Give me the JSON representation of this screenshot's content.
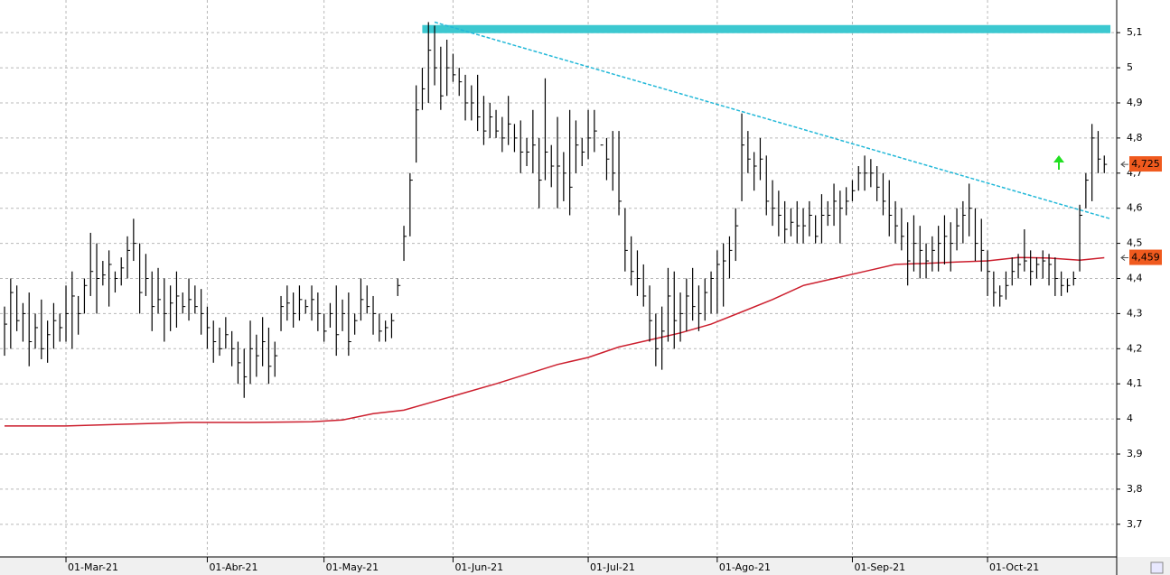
{
  "chart_data": {
    "type": "ohlc",
    "xlim": [
      -0.74,
      181.02
    ],
    "ylim": [
      3.607,
      5.193
    ],
    "grid": true,
    "xticks": [
      {
        "value": 10,
        "label": "01-Mar-21"
      },
      {
        "value": 33,
        "label": "01-Abr-21"
      },
      {
        "value": 52,
        "label": "01-May-21"
      },
      {
        "value": 73,
        "label": "01-Jun-21"
      },
      {
        "value": 95,
        "label": "01-Jul-21"
      },
      {
        "value": 116,
        "label": "01-Ago-21"
      },
      {
        "value": 138,
        "label": "01-Sep-21"
      },
      {
        "value": 160,
        "label": "01-Oct-21"
      }
    ],
    "yticks": [
      {
        "value": 3.7,
        "label": "3,7"
      },
      {
        "value": 3.8,
        "label": "3,8"
      },
      {
        "value": 3.9,
        "label": "3,9"
      },
      4,
      {
        "value": 4.1,
        "label": "4,1"
      },
      {
        "value": 4.2,
        "label": "4,2"
      },
      {
        "value": 4.3,
        "label": "4,3"
      },
      {
        "value": 4.4,
        "label": "4,4"
      },
      {
        "value": 4.5,
        "label": "4,5"
      },
      {
        "value": 4.6,
        "label": "4,6"
      },
      {
        "value": 4.7,
        "label": "4,7"
      },
      {
        "value": 4.8,
        "label": "4,8"
      },
      {
        "value": 4.9,
        "label": "4,9"
      },
      5,
      {
        "value": 5.1,
        "label": "5,1"
      }
    ],
    "bar_color": "#000000",
    "high": [
      4.32,
      4.4,
      4.38,
      4.33,
      4.36,
      4.3,
      4.34,
      4.28,
      4.33,
      4.3,
      4.38,
      4.42,
      4.35,
      4.4,
      4.53,
      4.5,
      4.45,
      4.48,
      4.42,
      4.46,
      4.52,
      4.57,
      4.5,
      4.47,
      4.42,
      4.43,
      4.4,
      4.38,
      4.42,
      4.36,
      4.4,
      4.38,
      4.37,
      4.32,
      4.28,
      4.26,
      4.29,
      4.25,
      4.22,
      4.2,
      4.28,
      4.24,
      4.29,
      4.26,
      4.22,
      4.35,
      4.38,
      4.36,
      4.38,
      4.34,
      4.38,
      4.36,
      4.3,
      4.33,
      4.38,
      4.34,
      4.36,
      4.3,
      4.4,
      4.38,
      4.35,
      4.3,
      4.28,
      4.3,
      4.4,
      4.55,
      4.7,
      4.95,
      5.0,
      5.13,
      5.12,
      5.06,
      5.08,
      5.04,
      5.0,
      4.98,
      4.95,
      4.98,
      4.92,
      4.9,
      4.88,
      4.86,
      4.92,
      4.84,
      4.85,
      4.8,
      4.88,
      4.8,
      4.97,
      4.78,
      4.86,
      4.76,
      4.88,
      4.85,
      4.8,
      4.88,
      4.88,
      4.8,
      4.8,
      4.82,
      4.82,
      4.6,
      4.52,
      4.48,
      4.44,
      4.38,
      4.3,
      4.32,
      4.43,
      4.42,
      4.36,
      4.4,
      4.43,
      4.38,
      4.4,
      4.42,
      4.48,
      4.5,
      4.52,
      4.6,
      4.87,
      4.82,
      4.76,
      4.8,
      4.75,
      4.68,
      4.65,
      4.62,
      4.6,
      4.62,
      4.6,
      4.62,
      4.58,
      4.64,
      4.62,
      4.67,
      4.65,
      4.66,
      4.68,
      4.72,
      4.75,
      4.74,
      4.72,
      4.7,
      4.68,
      4.62,
      4.6,
      4.56,
      4.58,
      4.55,
      4.5,
      4.52,
      4.55,
      4.58,
      4.56,
      4.6,
      4.62,
      4.67,
      4.6,
      4.57,
      4.48,
      4.42,
      4.38,
      4.42,
      4.46,
      4.47,
      4.54,
      4.48,
      4.46,
      4.48,
      4.47,
      4.46,
      4.42,
      4.4,
      4.42,
      4.61,
      4.7,
      4.84,
      4.82,
      4.75
    ],
    "low": [
      4.18,
      4.2,
      4.25,
      4.22,
      4.15,
      4.2,
      4.17,
      4.16,
      4.2,
      4.22,
      4.22,
      4.2,
      4.24,
      4.3,
      4.35,
      4.3,
      4.38,
      4.32,
      4.36,
      4.38,
      4.4,
      4.45,
      4.3,
      4.35,
      4.25,
      4.3,
      4.22,
      4.25,
      4.26,
      4.3,
      4.28,
      4.3,
      4.24,
      4.2,
      4.16,
      4.18,
      4.2,
      4.15,
      4.1,
      4.06,
      4.1,
      4.12,
      4.15,
      4.1,
      4.12,
      4.25,
      4.28,
      4.26,
      4.28,
      4.3,
      4.28,
      4.25,
      4.22,
      4.26,
      4.18,
      4.25,
      4.18,
      4.24,
      4.28,
      4.3,
      4.24,
      4.22,
      4.22,
      4.23,
      4.35,
      4.45,
      4.52,
      4.73,
      4.88,
      4.9,
      4.95,
      4.88,
      4.92,
      4.96,
      4.92,
      4.85,
      4.85,
      4.82,
      4.78,
      4.8,
      4.8,
      4.76,
      4.78,
      4.76,
      4.7,
      4.72,
      4.7,
      4.6,
      4.68,
      4.66,
      4.6,
      4.62,
      4.58,
      4.7,
      4.72,
      4.74,
      4.76,
      4.8,
      4.68,
      4.65,
      4.58,
      4.42,
      4.38,
      4.35,
      4.32,
      4.22,
      4.15,
      4.14,
      4.22,
      4.2,
      4.22,
      4.25,
      4.28,
      4.25,
      4.28,
      4.3,
      4.3,
      4.32,
      4.4,
      4.45,
      4.62,
      4.7,
      4.65,
      4.68,
      4.58,
      4.55,
      4.52,
      4.5,
      4.52,
      4.5,
      4.5,
      4.52,
      4.5,
      4.5,
      4.55,
      4.55,
      4.5,
      4.58,
      4.62,
      4.65,
      4.65,
      4.66,
      4.62,
      4.58,
      4.52,
      4.5,
      4.48,
      4.38,
      4.42,
      4.4,
      4.4,
      4.42,
      4.42,
      4.44,
      4.42,
      4.48,
      4.5,
      4.52,
      4.45,
      4.42,
      4.35,
      4.32,
      4.32,
      4.34,
      4.38,
      4.4,
      4.42,
      4.38,
      4.4,
      4.4,
      4.38,
      4.35,
      4.35,
      4.36,
      4.38,
      4.42,
      4.6,
      4.62,
      4.7,
      4.7
    ],
    "close": [
      4.27,
      4.36,
      4.28,
      4.3,
      4.22,
      4.26,
      4.2,
      4.24,
      4.28,
      4.26,
      4.3,
      4.35,
      4.3,
      4.38,
      4.42,
      4.4,
      4.41,
      4.44,
      4.4,
      4.43,
      4.48,
      4.5,
      4.36,
      4.4,
      4.32,
      4.34,
      4.3,
      4.33,
      4.35,
      4.32,
      4.34,
      4.32,
      4.3,
      4.26,
      4.22,
      4.2,
      4.24,
      4.2,
      4.16,
      4.12,
      4.2,
      4.18,
      4.22,
      4.15,
      4.18,
      4.32,
      4.33,
      4.3,
      4.34,
      4.32,
      4.34,
      4.3,
      4.25,
      4.3,
      4.24,
      4.3,
      4.22,
      4.28,
      4.34,
      4.32,
      4.3,
      4.25,
      4.26,
      4.28,
      4.38,
      4.52,
      4.68,
      4.88,
      4.94,
      5.05,
      5.0,
      4.92,
      5.0,
      4.98,
      4.96,
      4.9,
      4.9,
      4.86,
      4.82,
      4.86,
      4.82,
      4.8,
      4.84,
      4.8,
      4.76,
      4.76,
      4.78,
      4.68,
      4.76,
      4.72,
      4.72,
      4.7,
      4.66,
      4.78,
      4.76,
      4.8,
      4.82,
      4.78,
      4.74,
      4.7,
      4.62,
      4.48,
      4.42,
      4.4,
      4.35,
      4.28,
      4.2,
      4.25,
      4.35,
      4.28,
      4.3,
      4.35,
      4.32,
      4.3,
      4.36,
      4.4,
      4.44,
      4.45,
      4.48,
      4.55,
      4.78,
      4.74,
      4.72,
      4.74,
      4.62,
      4.6,
      4.58,
      4.54,
      4.56,
      4.55,
      4.55,
      4.58,
      4.52,
      4.58,
      4.58,
      4.62,
      4.6,
      4.62,
      4.65,
      4.7,
      4.7,
      4.7,
      4.66,
      4.62,
      4.58,
      4.55,
      4.52,
      4.45,
      4.5,
      4.48,
      4.45,
      4.48,
      4.5,
      4.52,
      4.5,
      4.55,
      4.58,
      4.6,
      4.5,
      4.48,
      4.42,
      4.36,
      4.35,
      4.38,
      4.42,
      4.44,
      4.45,
      4.42,
      4.44,
      4.45,
      4.44,
      4.4,
      4.38,
      4.38,
      4.4,
      4.58,
      4.68,
      4.8,
      4.74,
      4.725
    ],
    "moving_average": {
      "color": "#cc1f2e",
      "x": [
        0,
        10,
        20,
        30,
        40,
        50,
        55,
        60,
        65,
        70,
        80,
        90,
        95,
        100,
        105,
        110,
        115,
        120,
        125,
        130,
        135,
        140,
        145,
        150,
        155,
        160,
        165,
        170,
        175,
        179
      ],
      "values": [
        3.98,
        3.98,
        3.985,
        3.99,
        3.99,
        3.992,
        3.997,
        4.015,
        4.025,
        4.05,
        4.1,
        4.155,
        4.175,
        4.205,
        4.225,
        4.245,
        4.27,
        4.305,
        4.34,
        4.38,
        4.4,
        4.42,
        4.44,
        4.443,
        4.447,
        4.45,
        4.46,
        4.458,
        4.452,
        4.459
      ]
    },
    "trendline": {
      "color": "#22b8d8",
      "x": [
        70,
        180
      ],
      "values": [
        5.13,
        4.57
      ]
    },
    "resistance": {
      "color": "#3cc8d0",
      "x": [
        68,
        180
      ],
      "values": [
        5.11,
        5.11
      ]
    },
    "price_labels": [
      {
        "value": 4.725,
        "label": "4,725"
      },
      {
        "value": 4.459,
        "label": "4,459"
      }
    ],
    "price_label_color": "#f05a1e"
  }
}
